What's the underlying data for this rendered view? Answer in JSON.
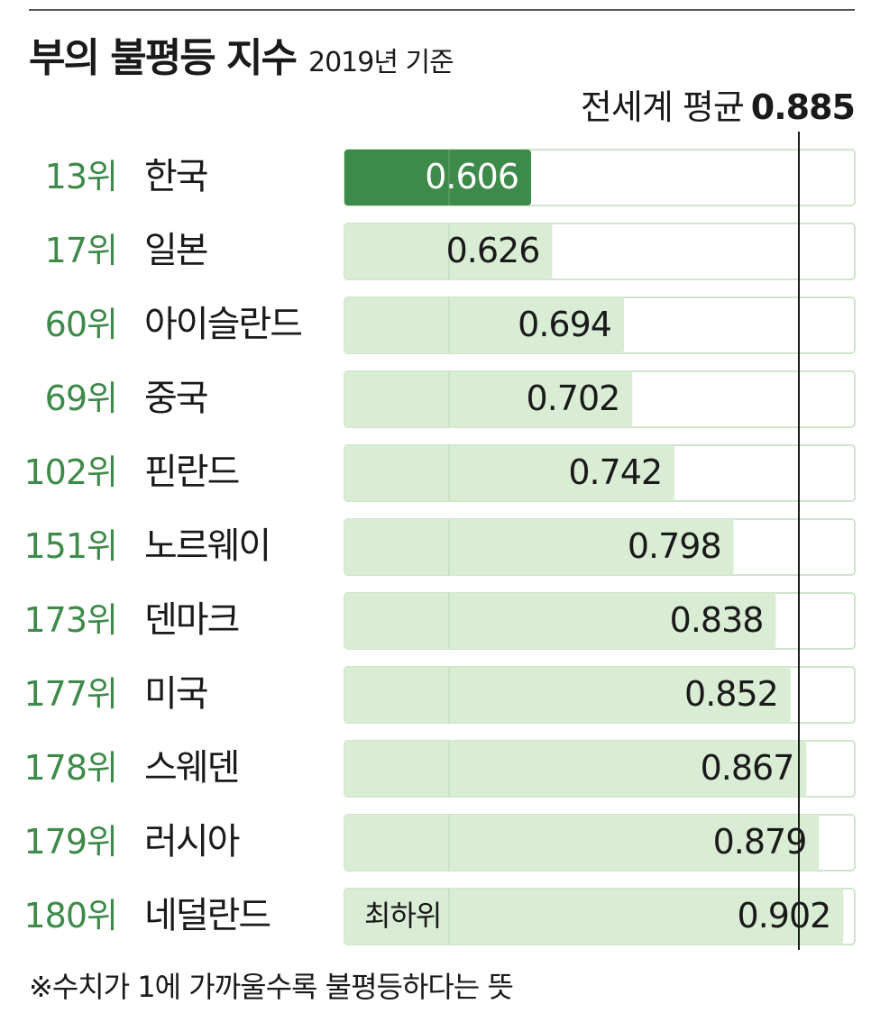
{
  "chart_data": {
    "type": "bar",
    "orientation": "horizontal",
    "title": "부의 불평등 지수",
    "subtitle": "2019년 기준",
    "reference_line": {
      "label": "전세계 평균",
      "value": 0.885,
      "value_label": "0.885"
    },
    "rows": [
      {
        "rank": "13위",
        "country": "한국",
        "value": 0.606,
        "label": "0.606",
        "highlight": true
      },
      {
        "rank": "17위",
        "country": "일본",
        "value": 0.626,
        "label": "0.626"
      },
      {
        "rank": "60위",
        "country": "아이슬란드",
        "value": 0.694,
        "label": "0.694"
      },
      {
        "rank": "69위",
        "country": "중국",
        "value": 0.702,
        "label": "0.702"
      },
      {
        "rank": "102위",
        "country": "핀란드",
        "value": 0.742,
        "label": "0.742"
      },
      {
        "rank": "151위",
        "country": "노르웨이",
        "value": 0.798,
        "label": "0.798"
      },
      {
        "rank": "173위",
        "country": "덴마크",
        "value": 0.838,
        "label": "0.838"
      },
      {
        "rank": "177위",
        "country": "미국",
        "value": 0.852,
        "label": "0.852"
      },
      {
        "rank": "178위",
        "country": "스웨덴",
        "value": 0.867,
        "label": "0.867"
      },
      {
        "rank": "179위",
        "country": "러시아",
        "value": 0.879,
        "label": "0.879"
      },
      {
        "rank": "180위",
        "country": "네덜란드",
        "value": 0.902,
        "label": "0.902",
        "note": "최하위"
      }
    ],
    "xlim": [
      0,
      1
    ],
    "grid": true,
    "colors": {
      "highlight_bar": "#3e8a4a",
      "bar": "#d9ecd4",
      "track_border": "#cfe5ca",
      "rank_text": "#3e8a4a",
      "reference_line": "#1a1a1a"
    }
  },
  "footnote": "※수치가 1에 가까울수록 불평등하다는 뜻"
}
